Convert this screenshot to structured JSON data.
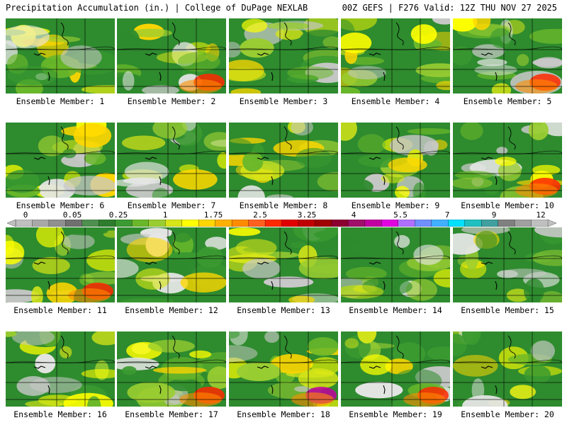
{
  "header": {
    "left": "Precipitation Accumulation (in.) | College of DuPage NEXLAB",
    "right": "00Z GEFS | F276 Valid: 12Z THU NOV 27 2025"
  },
  "colorbar": {
    "labels": [
      "0",
      "0.05",
      "0.25",
      "1",
      "1.75",
      "2.5",
      "3.25",
      "4",
      "5.5",
      "7",
      "9",
      "12"
    ],
    "colors": [
      "#c0c0c0",
      "#a8a8a8",
      "#909090",
      "#707070",
      "#4f8f4f",
      "#2e7d2e",
      "#3c9a32",
      "#6ab82a",
      "#9acd32",
      "#d7e618",
      "#ffff00",
      "#ffd700",
      "#ffb000",
      "#ff8c00",
      "#ff6020",
      "#ff2800",
      "#e00000",
      "#c00000",
      "#a00000",
      "#8b0030",
      "#a0106a",
      "#c000a0",
      "#e000e0",
      "#b070ff",
      "#7090ff",
      "#40b0ff",
      "#00e0ff",
      "#20c0c0",
      "#40a0a0",
      "#808080",
      "#a0a0a0",
      "#c0c0c0"
    ]
  },
  "members": [
    {
      "label": "Ensemble Member: 1"
    },
    {
      "label": "Ensemble Member: 2"
    },
    {
      "label": "Ensemble Member: 3"
    },
    {
      "label": "Ensemble Member: 4"
    },
    {
      "label": "Ensemble Member: 5"
    },
    {
      "label": "Ensemble Member: 6"
    },
    {
      "label": "Ensemble Member: 7"
    },
    {
      "label": "Ensemble Member: 8"
    },
    {
      "label": "Ensemble Member: 9"
    },
    {
      "label": "Ensemble Member: 10"
    },
    {
      "label": "Ensemble Member: 11"
    },
    {
      "label": "Ensemble Member: 12"
    },
    {
      "label": "Ensemble Member: 13"
    },
    {
      "label": "Ensemble Member: 14"
    },
    {
      "label": "Ensemble Member: 15"
    },
    {
      "label": "Ensemble Member: 16"
    },
    {
      "label": "Ensemble Member: 17"
    },
    {
      "label": "Ensemble Member: 18"
    },
    {
      "label": "Ensemble Member: 19"
    },
    {
      "label": "Ensemble Member: 20"
    }
  ]
}
